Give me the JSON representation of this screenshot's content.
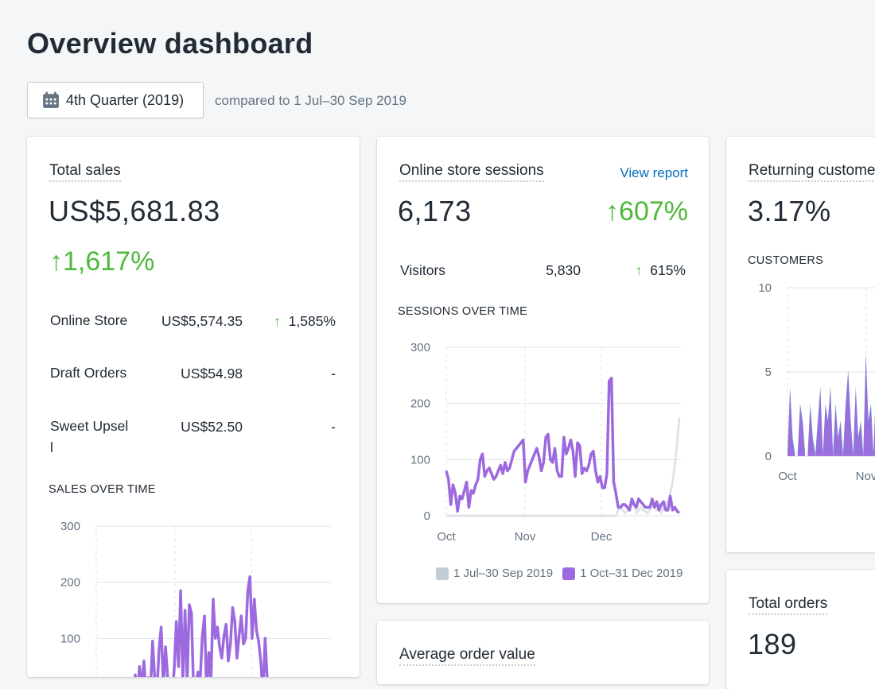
{
  "page": {
    "title": "Overview dashboard",
    "date_range": "4th Quarter (2019)",
    "compare_text": "compared to 1 Jul–30 Sep 2019"
  },
  "colors": {
    "current_series": "#9c6ade",
    "previous_series": "#dfe3e8",
    "positive": "#50b83c",
    "link": "#006fbb",
    "returning_teal": "#47c1bf"
  },
  "total_sales": {
    "title": "Total sales",
    "value": "US$5,681.83",
    "change": "1,617%",
    "rows": [
      {
        "label": "Online Store",
        "value": "US$5,574.35",
        "arrow": "↑",
        "change": "1,585%"
      },
      {
        "label": "Draft Orders",
        "value": "US$54.98",
        "arrow": "",
        "change": "-"
      },
      {
        "label": "Sweet Upsell",
        "value": "US$52.50",
        "arrow": "",
        "change": "-"
      }
    ],
    "chart_label": "SALES OVER TIME"
  },
  "sessions": {
    "title": "Online store sessions",
    "view_report": "View report",
    "value": "6,173",
    "change": "607%",
    "visitors_label": "Visitors",
    "visitors_value": "5,830",
    "visitors_change": "615%",
    "chart_label": "SESSIONS OVER TIME",
    "legend_previous": "1 Jul–30 Sep 2019",
    "legend_current": "1 Oct–31 Dec 2019"
  },
  "returning": {
    "title": "Returning customer rate",
    "value": "3.17%",
    "chart_label": "CUSTOMERS"
  },
  "average_order": {
    "title": "Average order value"
  },
  "total_orders": {
    "title": "Total orders",
    "value": "189"
  },
  "chart_data": [
    {
      "id": "sessions",
      "type": "line",
      "title": "SESSIONS OVER TIME",
      "x_ticks": [
        "Oct",
        "Nov",
        "Dec"
      ],
      "y_ticks": [
        0,
        100,
        200,
        300
      ],
      "ylim": [
        0,
        300
      ],
      "grid": true,
      "legend_position": "bottom-right",
      "series": [
        {
          "name": "1 Oct–31 Dec 2019",
          "values": [
            80,
            65,
            20,
            55,
            40,
            8,
            35,
            30,
            45,
            60,
            15,
            45,
            40,
            55,
            65,
            100,
            110,
            70,
            80,
            85,
            75,
            65,
            70,
            80,
            90,
            75,
            95,
            80,
            85,
            100,
            115,
            120,
            125,
            130,
            135,
            60,
            80,
            90,
            100,
            110,
            120,
            105,
            80,
            95,
            140,
            145,
            100,
            95,
            120,
            80,
            70,
            70,
            140,
            110,
            120,
            135,
            115,
            70,
            130,
            125,
            75,
            85,
            80,
            90,
            110,
            115,
            80,
            60,
            70,
            50,
            50,
            75,
            240,
            245,
            60,
            40,
            15,
            15,
            20,
            20,
            15,
            10,
            30,
            20,
            15,
            30,
            25,
            20,
            15,
            15,
            15,
            30,
            15,
            25,
            10,
            20,
            25,
            10,
            10,
            35,
            10,
            15,
            8,
            5
          ]
        },
        {
          "name": "1 Jul–30 Sep 2019",
          "values": [
            0,
            0,
            0,
            0,
            0,
            0,
            0,
            0,
            0,
            0,
            0,
            0,
            0,
            0,
            0,
            0,
            0,
            0,
            0,
            0,
            0,
            0,
            0,
            0,
            0,
            0,
            0,
            0,
            0,
            0,
            0,
            0,
            0,
            0,
            0,
            0,
            0,
            0,
            0,
            0,
            0,
            0,
            0,
            0,
            0,
            0,
            0,
            0,
            0,
            0,
            0,
            0,
            0,
            0,
            0,
            0,
            0,
            0,
            0,
            0,
            0,
            0,
            0,
            0,
            0,
            0,
            0,
            0,
            0,
            0,
            0,
            0,
            0,
            0,
            0,
            0,
            10,
            15,
            10,
            5,
            8,
            15,
            20,
            25,
            5,
            10,
            15,
            10,
            8,
            5,
            10,
            20,
            15,
            10,
            20,
            5,
            15,
            25,
            20,
            40,
            60,
            90,
            130,
            175
          ]
        }
      ]
    },
    {
      "id": "sales",
      "type": "line",
      "title": "SALES OVER TIME",
      "y_ticks": [
        100,
        200,
        300
      ],
      "ylim": [
        0,
        300
      ],
      "grid": true,
      "series": [
        {
          "name": "1 Oct–31 Dec 2019",
          "values": [
            10,
            0,
            5,
            0,
            0,
            0,
            20,
            0,
            0,
            0,
            0,
            0,
            5,
            0,
            0,
            0,
            0,
            0,
            35,
            0,
            50,
            10,
            60,
            0,
            30,
            0,
            95,
            30,
            0,
            80,
            120,
            15,
            85,
            30,
            0,
            0,
            45,
            130,
            50,
            185,
            20,
            150,
            25,
            160,
            145,
            0,
            20,
            40,
            25,
            105,
            140,
            0,
            75,
            25,
            170,
            100,
            120,
            85,
            65,
            105,
            125,
            60,
            90,
            155,
            130,
            65,
            105,
            140,
            90,
            100,
            185,
            210,
            100,
            170,
            115,
            95,
            60,
            0,
            100,
            25
          ]
        }
      ]
    },
    {
      "id": "customers",
      "type": "area",
      "title": "CUSTOMERS",
      "x_ticks": [
        "Oct",
        "Nov"
      ],
      "y_ticks": [
        0,
        5,
        10
      ],
      "ylim": [
        0,
        10
      ],
      "grid": true
    }
  ]
}
